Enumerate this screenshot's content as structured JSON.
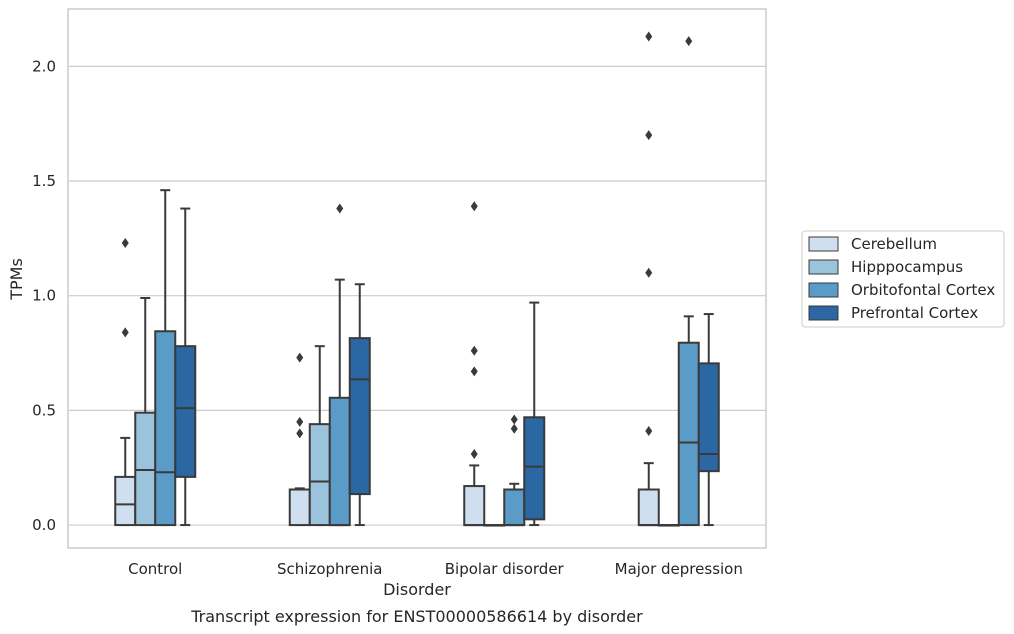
{
  "chart_data": {
    "type": "box",
    "title": "",
    "caption": "Transcript expression for ENST00000586614 by disorder",
    "xlabel": "Disorder",
    "ylabel": "TPMs",
    "ylim": [
      -0.1,
      2.25
    ],
    "yticks": [
      0.0,
      0.5,
      1.0,
      1.5,
      2.0
    ],
    "ytick_labels": [
      "0.0",
      "0.5",
      "1.0",
      "1.5",
      "2.0"
    ],
    "grid": true,
    "legend_position": "right",
    "categories": [
      "Control",
      "Schizophrenia",
      "Bipolar disorder",
      "Major depression"
    ],
    "series": [
      {
        "name": "Cerebellum",
        "color": "#d0dff0",
        "boxes": [
          {
            "whislo": 0.0,
            "q1": 0.0,
            "med": 0.09,
            "q3": 0.21,
            "whishi": 0.38,
            "fliers": [
              0.84,
              1.23
            ]
          },
          {
            "whislo": 0.0,
            "q1": 0.0,
            "med": 0.155,
            "q3": 0.155,
            "whishi": 0.16,
            "fliers": [
              0.4,
              0.45,
              0.73
            ]
          },
          {
            "whislo": 0.0,
            "q1": 0.0,
            "med": 0.0,
            "q3": 0.17,
            "whishi": 0.26,
            "fliers": [
              0.31,
              0.67,
              0.76,
              1.39
            ]
          },
          {
            "whislo": 0.0,
            "q1": 0.0,
            "med": 0.0,
            "q3": 0.155,
            "whishi": 0.27,
            "fliers": [
              0.41,
              1.1,
              1.7,
              2.13
            ]
          }
        ]
      },
      {
        "name": "Hipppocampus",
        "color": "#9bc3db",
        "boxes": [
          {
            "whislo": 0.0,
            "q1": 0.0,
            "med": 0.24,
            "q3": 0.49,
            "whishi": 0.99,
            "fliers": []
          },
          {
            "whislo": 0.0,
            "q1": 0.0,
            "med": 0.19,
            "q3": 0.44,
            "whishi": 0.78,
            "fliers": []
          },
          {
            "whislo": 0.0,
            "q1": 0.0,
            "med": 0.0,
            "q3": 0.0,
            "whishi": 0.0,
            "fliers": []
          },
          {
            "whislo": 0.0,
            "q1": 0.0,
            "med": 0.0,
            "q3": 0.0,
            "whishi": 0.0,
            "fliers": []
          }
        ]
      },
      {
        "name": "Orbitofontal Cortex",
        "color": "#5a9bc7",
        "boxes": [
          {
            "whislo": 0.0,
            "q1": 0.0,
            "med": 0.23,
            "q3": 0.845,
            "whishi": 1.46,
            "fliers": []
          },
          {
            "whislo": 0.0,
            "q1": 0.0,
            "med": 0.0,
            "q3": 0.555,
            "whishi": 1.07,
            "fliers": [
              1.38
            ]
          },
          {
            "whislo": 0.0,
            "q1": 0.0,
            "med": 0.0,
            "q3": 0.155,
            "whishi": 0.18,
            "fliers": [
              0.42,
              0.46
            ]
          },
          {
            "whislo": 0.0,
            "q1": 0.0,
            "med": 0.36,
            "q3": 0.795,
            "whishi": 0.91,
            "fliers": [
              2.11
            ]
          }
        ]
      },
      {
        "name": "Prefrontal Cortex",
        "color": "#2a67a3",
        "boxes": [
          {
            "whislo": 0.0,
            "q1": 0.21,
            "med": 0.51,
            "q3": 0.78,
            "whishi": 1.38,
            "fliers": []
          },
          {
            "whislo": 0.0,
            "q1": 0.135,
            "med": 0.635,
            "q3": 0.815,
            "whishi": 1.05,
            "fliers": []
          },
          {
            "whislo": 0.0,
            "q1": 0.025,
            "med": 0.255,
            "q3": 0.47,
            "whishi": 0.97,
            "fliers": []
          },
          {
            "whislo": 0.0,
            "q1": 0.235,
            "med": 0.31,
            "q3": 0.705,
            "whishi": 0.92,
            "fliers": []
          }
        ]
      }
    ]
  }
}
